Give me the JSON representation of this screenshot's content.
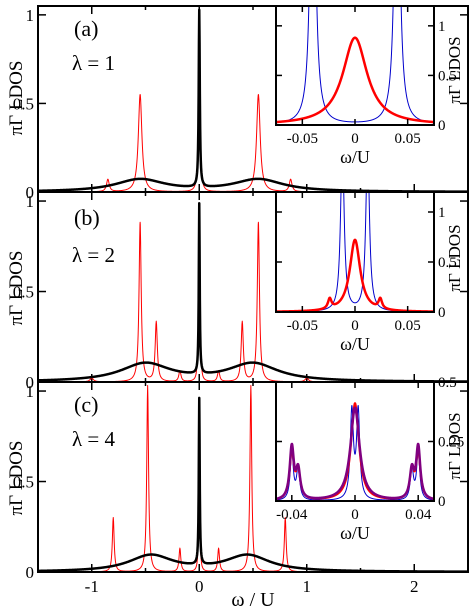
{
  "colors": {
    "black": "#000000",
    "red": "#ff0000",
    "blue": "#0000cc",
    "purple": "#800080"
  },
  "chart_data": [
    {
      "type": "line",
      "panel": "(a)",
      "annotation": "λ = 1",
      "ylabel": "πΓ LDOS",
      "xlim": [
        -1.5,
        2.5
      ],
      "ylim": [
        0,
        1.05
      ],
      "yticks": [
        0,
        0.5,
        1
      ],
      "ytick_labels": [
        "0",
        "0.5",
        "1"
      ],
      "series": [
        {
          "color": "red",
          "kind": "peaks",
          "peaks": [
            [
              -0.85,
              0.07,
              0.015
            ],
            [
              -0.55,
              0.55,
              0.02
            ],
            [
              0,
              0.98,
              0.008
            ],
            [
              0.55,
              0.55,
              0.02
            ],
            [
              0.85,
              0.07,
              0.015
            ]
          ]
        },
        {
          "color": "black",
          "kind": "peaks",
          "peaks": [
            [
              -0.55,
              0.07,
              0.28
            ],
            [
              0,
              1.0,
              0.006
            ],
            [
              0.55,
              0.07,
              0.28
            ]
          ]
        }
      ],
      "inset": {
        "xlabel": "ω/U",
        "ylabel": "πΓ LDOS",
        "xlim": [
          -0.075,
          0.075
        ],
        "ylim": [
          0,
          1.2
        ],
        "xticks": [
          -0.05,
          0,
          0.05
        ],
        "xtick_labels": [
          "-0.05",
          "0",
          "0.05"
        ],
        "yticks": [
          0,
          0.5,
          1
        ],
        "ytick_labels": [
          "0",
          "0.5",
          "1"
        ],
        "series": [
          {
            "color": "blue",
            "width": 1,
            "kind": "peaks",
            "peaks": [
              [
                -0.04,
                4.0,
                0.0025
              ],
              [
                0.04,
                4.0,
                0.0025
              ]
            ]
          },
          {
            "color": "red",
            "width": 2.5,
            "kind": "peaks",
            "peaks": [
              [
                0,
                0.88,
                0.014
              ]
            ]
          }
        ]
      }
    },
    {
      "type": "line",
      "panel": "(b)",
      "annotation": "λ = 2",
      "ylabel": "πΓ LDOS",
      "xlim": [
        -1.5,
        2.5
      ],
      "ylim": [
        0,
        1.05
      ],
      "yticks": [
        0,
        0.5,
        1
      ],
      "ytick_labels": [
        "0",
        "0.5",
        "1"
      ],
      "series": [
        {
          "color": "red",
          "kind": "peaks",
          "peaks": [
            [
              -1.0,
              0.02,
              0.02
            ],
            [
              -0.55,
              0.88,
              0.012
            ],
            [
              -0.4,
              0.33,
              0.012
            ],
            [
              -0.18,
              0.06,
              0.012
            ],
            [
              -0.02,
              0.02,
              0.006
            ],
            [
              0,
              0.95,
              0.006
            ],
            [
              0.02,
              0.02,
              0.006
            ],
            [
              0.18,
              0.06,
              0.012
            ],
            [
              0.4,
              0.33,
              0.012
            ],
            [
              0.55,
              0.88,
              0.012
            ],
            [
              1.0,
              0.02,
              0.02
            ]
          ]
        },
        {
          "color": "black",
          "kind": "peaks",
          "peaks": [
            [
              -0.5,
              0.1,
              0.28
            ],
            [
              0,
              0.94,
              0.005
            ],
            [
              0.5,
              0.1,
              0.28
            ]
          ]
        }
      ],
      "inset": {
        "xlabel": "ω/U",
        "ylabel": "πΓ LDOS",
        "xlim": [
          -0.075,
          0.075
        ],
        "ylim": [
          0,
          1.2
        ],
        "xticks": [
          -0.05,
          0,
          0.05
        ],
        "xtick_labels": [
          "-0.05",
          "0",
          "0.05"
        ],
        "yticks": [
          0,
          0.5,
          1
        ],
        "ytick_labels": [
          "0",
          "0.5",
          "1"
        ],
        "series": [
          {
            "color": "blue",
            "width": 1,
            "kind": "peaks",
            "peaks": [
              [
                -0.012,
                1.7,
                0.002
              ],
              [
                0.012,
                1.7,
                0.002
              ]
            ]
          },
          {
            "color": "red",
            "width": 2.5,
            "kind": "peaks",
            "peaks": [
              [
                0,
                0.72,
                0.006
              ],
              [
                -0.024,
                0.1,
                0.002
              ],
              [
                0.024,
                0.1,
                0.002
              ]
            ]
          }
        ]
      }
    },
    {
      "type": "line",
      "panel": "(c)",
      "annotation": "λ = 4",
      "ylabel": "πΓ LDOS",
      "xlabel": "ω / U",
      "xlim": [
        -1.5,
        2.5
      ],
      "ylim": [
        0,
        1.05
      ],
      "xticks": [
        -1,
        0,
        1,
        2
      ],
      "xtick_labels": [
        "-1",
        "0",
        "1",
        "2"
      ],
      "yticks": [
        0,
        0.5,
        1
      ],
      "ytick_labels": [
        "0",
        "0.5",
        "1"
      ],
      "series": [
        {
          "color": "red",
          "kind": "peaks",
          "peaks": [
            [
              -0.8,
              0.3,
              0.01
            ],
            [
              -0.48,
              1.03,
              0.01
            ],
            [
              -0.18,
              0.13,
              0.01
            ],
            [
              0,
              0.92,
              0.005
            ],
            [
              0.18,
              0.13,
              0.01
            ],
            [
              0.48,
              1.03,
              0.01
            ],
            [
              0.8,
              0.3,
              0.01
            ]
          ]
        },
        {
          "color": "black",
          "kind": "peaks",
          "peaks": [
            [
              -0.45,
              0.09,
              0.25
            ],
            [
              0,
              0.92,
              0.005
            ],
            [
              0.45,
              0.09,
              0.25
            ]
          ]
        }
      ],
      "inset": {
        "xlabel": "ω/U",
        "ylabel": "πΓ LDOS",
        "xlim": [
          -0.05,
          0.05
        ],
        "ylim": [
          0,
          0.5
        ],
        "xticks": [
          -0.04,
          0,
          0.04
        ],
        "xtick_labels": [
          "-0.04",
          "0",
          "0.04"
        ],
        "yticks": [
          0,
          0.25,
          0.5
        ],
        "ytick_labels": [
          "0",
          "0.25",
          "0.5"
        ],
        "series": [
          {
            "color": "blue",
            "width": 1,
            "kind": "peaks",
            "peaks": [
              [
                -0.04,
                0.2,
                0.0012
              ],
              [
                -0.036,
                0.13,
                0.0012
              ],
              [
                -0.002,
                0.37,
                0.0012
              ],
              [
                0.002,
                0.37,
                0.0012
              ],
              [
                0.036,
                0.13,
                0.0012
              ],
              [
                0.04,
                0.2,
                0.0012
              ]
            ]
          },
          {
            "color": "red",
            "width": 2,
            "kind": "peaks",
            "peaks": [
              [
                -0.04,
                0.2,
                0.0016
              ],
              [
                -0.036,
                0.12,
                0.0016
              ],
              [
                0,
                0.41,
                0.003
              ],
              [
                0.036,
                0.12,
                0.0016
              ],
              [
                0.04,
                0.2,
                0.0016
              ]
            ]
          },
          {
            "color": "purple",
            "width": 2.5,
            "kind": "peaks",
            "peaks": [
              [
                -0.04,
                0.22,
                0.0016
              ],
              [
                -0.036,
                0.12,
                0.0016
              ],
              [
                0,
                0.39,
                0.0035
              ],
              [
                0.036,
                0.12,
                0.0016
              ],
              [
                0.04,
                0.22,
                0.0016
              ]
            ]
          }
        ]
      }
    }
  ]
}
